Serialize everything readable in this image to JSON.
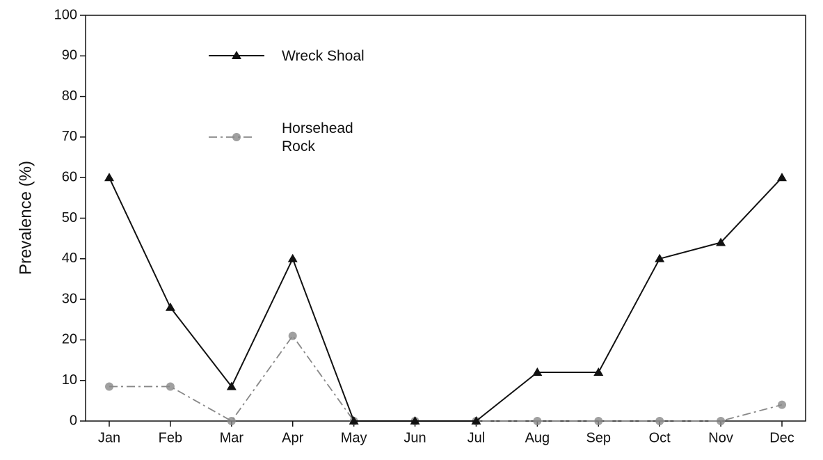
{
  "chart_data": {
    "type": "line",
    "y_label": "Prevalence (%)",
    "categories": [
      "Jan",
      "Feb",
      "Mar",
      "Apr",
      "May",
      "Jun",
      "Jul",
      "Aug",
      "Sep",
      "Oct",
      "Nov",
      "Dec"
    ],
    "series": [
      {
        "name": "Wreck Shoal",
        "color": "#111111",
        "values": [
          60,
          28,
          8.5,
          40,
          0,
          0,
          0,
          12,
          12,
          40,
          44,
          60
        ]
      },
      {
        "name": "Horsehead Rock",
        "color": "#888888",
        "values": [
          8.5,
          8.5,
          0,
          21,
          0,
          0,
          0,
          0,
          0,
          0,
          0,
          4
        ]
      }
    ],
    "ylim": [
      0,
      100
    ],
    "yticks": [
      0,
      10,
      20,
      30,
      40,
      50,
      60,
      70,
      80,
      90,
      100
    ],
    "grid": false
  }
}
